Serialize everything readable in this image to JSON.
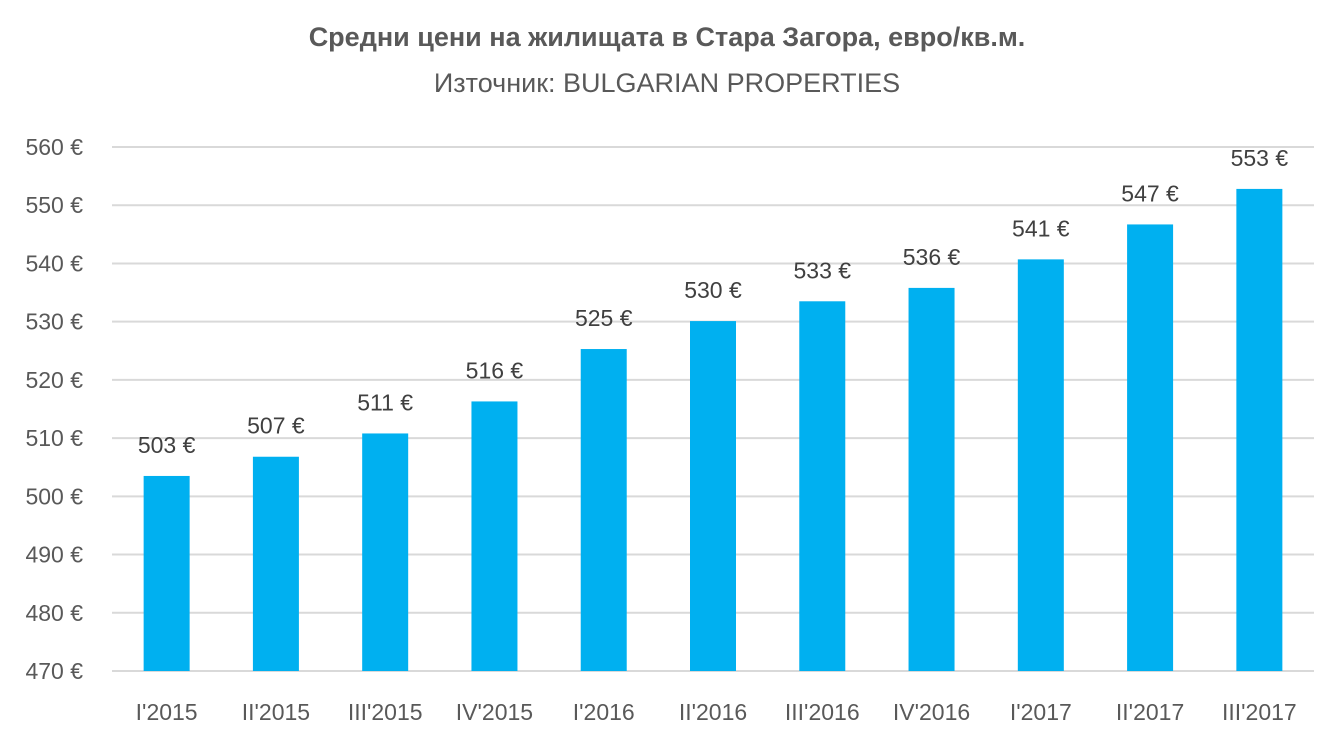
{
  "chart_data": {
    "type": "bar",
    "title": "Средни цени на жилищата в Стара Загора, евро/кв.м.",
    "subtitle": "Източник: BULGARIAN PROPERTIES",
    "categories": [
      "I'2015",
      "II'2015",
      "III'2015",
      "IV'2015",
      "I'2016",
      "II'2016",
      "III'2016",
      "IV'2016",
      "I'2017",
      "II'2017",
      "III'2017"
    ],
    "values": [
      503.5,
      506.8,
      510.8,
      516.3,
      525.3,
      530.1,
      533.5,
      535.8,
      540.7,
      546.7,
      552.8
    ],
    "data_labels": [
      "503 €",
      "507 €",
      "511 €",
      "516 €",
      "525 €",
      "530 €",
      "533 €",
      "536 €",
      "541 €",
      "547 €",
      "553 €"
    ],
    "ylim": [
      470,
      560
    ],
    "yticks": [
      470,
      480,
      490,
      500,
      510,
      520,
      530,
      540,
      550,
      560
    ],
    "ytick_labels": [
      "470 €",
      "480 €",
      "490 €",
      "500 €",
      "510 €",
      "520 €",
      "530 €",
      "540 €",
      "550 €",
      "560 €"
    ],
    "grid": true,
    "bar_color": "#00B0F0",
    "grid_color": "#D9D9D9"
  }
}
